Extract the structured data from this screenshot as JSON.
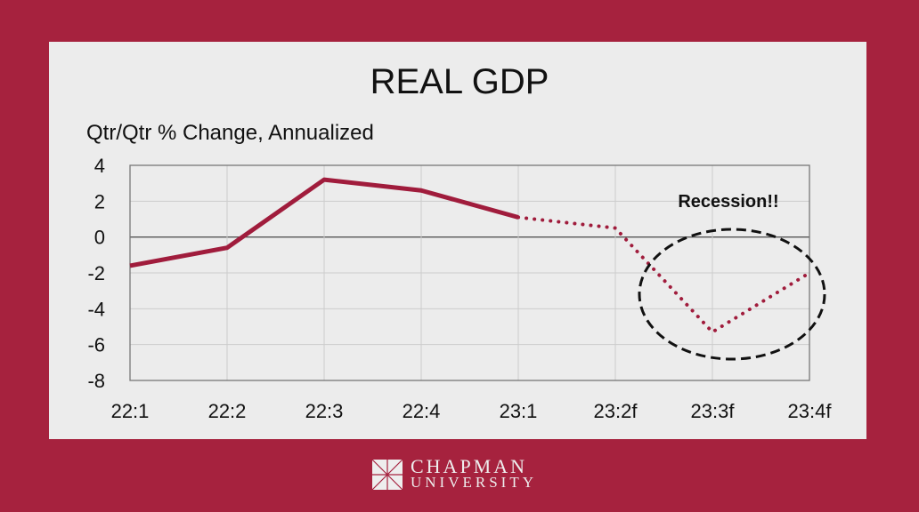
{
  "chart_data": {
    "type": "line",
    "title": "REAL GDP",
    "ylabel": "Qtr/Qtr % Change, Annualized",
    "xlabel": "",
    "categories": [
      "22:1",
      "22:2",
      "22:3",
      "22:4",
      "23:1",
      "23:2f",
      "23:3f",
      "23:4f"
    ],
    "ylim": [
      -8,
      4
    ],
    "yticks": [
      4,
      2,
      0,
      -2,
      -4,
      -6,
      -8
    ],
    "grid": true,
    "series": [
      {
        "values": [
          -1.6,
          -0.6,
          3.2,
          2.6,
          1.1,
          0.5,
          -5.3,
          -2.0
        ],
        "style": "solid through 23:1, dotted for forecasts",
        "color": "#a01c3c"
      }
    ],
    "annotations": [
      {
        "text": "Recession!!",
        "shape": "dashed-ellipse",
        "around": [
          "23:3f"
        ]
      }
    ]
  },
  "logo": {
    "line1": "CHAPMAN",
    "line2": "UNIVERSITY"
  },
  "colors": {
    "background": "#a6223e",
    "panel": "#ececec",
    "line": "#a01c3c"
  }
}
